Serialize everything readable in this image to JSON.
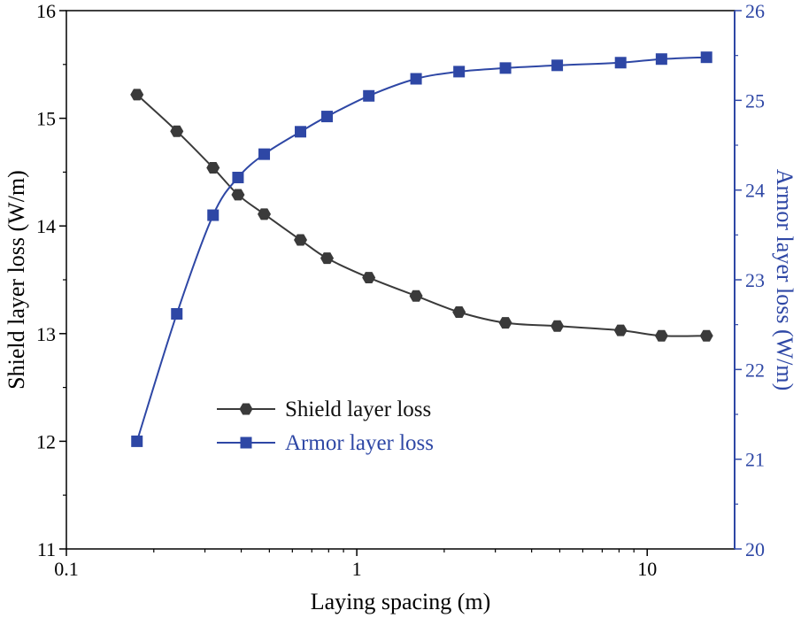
{
  "chart_data": {
    "type": "line",
    "xlabel": "Laying spacing (m)",
    "xscale": "log",
    "xlim": [
      0.1,
      20
    ],
    "x_ticks": [
      {
        "value": 0.1,
        "label": "0.1"
      },
      {
        "value": 1,
        "label": "1"
      },
      {
        "value": 10,
        "label": "10"
      }
    ],
    "y_left": {
      "label": "Shield layer loss (W/m)",
      "ylim": [
        11,
        16
      ],
      "ticks": [
        {
          "value": 11,
          "label": "11"
        },
        {
          "value": 12,
          "label": "12"
        },
        {
          "value": 13,
          "label": "13"
        },
        {
          "value": 14,
          "label": "14"
        },
        {
          "value": 15,
          "label": "15"
        },
        {
          "value": 16,
          "label": "16"
        }
      ]
    },
    "y_right": {
      "label": "Armor layer loss (W/m)",
      "ylim": [
        20,
        26
      ],
      "ticks": [
        {
          "value": 20,
          "label": "20"
        },
        {
          "value": 21,
          "label": "21"
        },
        {
          "value": 22,
          "label": "22"
        },
        {
          "value": 23,
          "label": "23"
        },
        {
          "value": 24,
          "label": "24"
        },
        {
          "value": 25,
          "label": "25"
        },
        {
          "value": 26,
          "label": "26"
        }
      ]
    },
    "series": [
      {
        "name": "Shield layer loss",
        "axis": "left",
        "color": "#3a3a3a",
        "marker": "hexagon",
        "x": [
          0.175,
          0.24,
          0.32,
          0.39,
          0.48,
          0.64,
          0.79,
          1.1,
          1.6,
          2.25,
          3.25,
          4.9,
          8.1,
          11.2,
          16
        ],
        "y": [
          15.22,
          14.88,
          14.54,
          14.29,
          14.11,
          13.87,
          13.7,
          13.52,
          13.35,
          13.2,
          13.1,
          13.07,
          13.03,
          12.98,
          12.98
        ]
      },
      {
        "name": "Armor layer loss",
        "axis": "right",
        "color": "#2e47a5",
        "marker": "square",
        "x": [
          0.175,
          0.24,
          0.32,
          0.39,
          0.48,
          0.64,
          0.79,
          1.1,
          1.6,
          2.25,
          3.25,
          4.9,
          8.1,
          11.2,
          16
        ],
        "y": [
          21.2,
          22.62,
          23.72,
          24.14,
          24.4,
          24.65,
          24.82,
          25.05,
          25.24,
          25.32,
          25.36,
          25.39,
          25.42,
          25.46,
          25.48
        ]
      }
    ],
    "legend": {
      "position": "center-left"
    }
  }
}
